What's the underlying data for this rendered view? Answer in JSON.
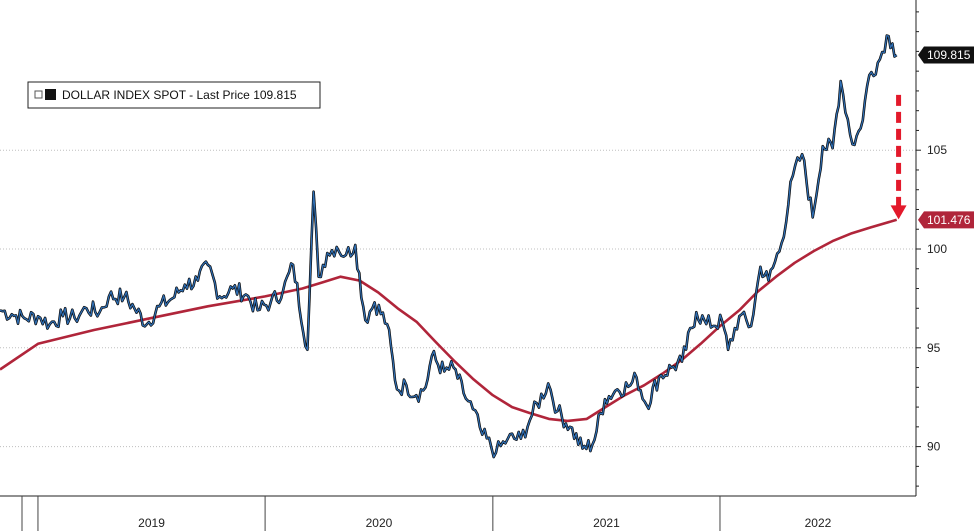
{
  "chart_data": {
    "type": "line",
    "legend": {
      "label": "DOLLAR INDEX SPOT - Last Price",
      "value": "109.815",
      "position": "top-left"
    },
    "y_axis": {
      "side": "right",
      "ylim": [
        87.5,
        112.5
      ],
      "ticks": [
        90,
        95,
        100,
        105
      ]
    },
    "x_axis": {
      "labels": [
        "2019",
        "2020",
        "2021",
        "2022"
      ]
    },
    "grid": {
      "horizontal": true,
      "vertical": false
    },
    "colors": {
      "price": "#2f6fb5",
      "ma": "#b0253a",
      "last_tag": "#111111",
      "ma_tag": "#b0253a",
      "arrow": "#e3192b",
      "grid": "#bfbfbf"
    },
    "series": [
      {
        "name": "DOLLAR INDEX SPOT - Last Price",
        "kind": "price",
        "points": [
          [
            "2018-11-01",
            96.9
          ],
          [
            "2018-11-20",
            96.7
          ],
          [
            "2018-12-10",
            96.5
          ],
          [
            "2019-01-01",
            96.6
          ],
          [
            "2019-01-20",
            96.2
          ],
          [
            "2019-02-10",
            96.6
          ],
          [
            "2019-03-01",
            96.5
          ],
          [
            "2019-03-20",
            97.0
          ],
          [
            "2019-04-10",
            96.8
          ],
          [
            "2019-04-25",
            97.6
          ],
          [
            "2019-05-20",
            97.6
          ],
          [
            "2019-06-05",
            97.0
          ],
          [
            "2019-06-25",
            96.2
          ],
          [
            "2019-07-15",
            97.1
          ],
          [
            "2019-08-05",
            97.5
          ],
          [
            "2019-08-25",
            98.2
          ],
          [
            "2019-09-15",
            98.4
          ],
          [
            "2019-10-01",
            99.2
          ],
          [
            "2019-10-20",
            97.6
          ],
          [
            "2019-11-10",
            98.0
          ],
          [
            "2019-12-01",
            97.7
          ],
          [
            "2019-12-20",
            96.9
          ],
          [
            "2020-01-10",
            97.3
          ],
          [
            "2020-01-30",
            97.9
          ],
          [
            "2020-02-15",
            99.2
          ],
          [
            "2020-03-09",
            94.9
          ],
          [
            "2020-03-19",
            102.9
          ],
          [
            "2020-03-27",
            98.6
          ],
          [
            "2020-04-10",
            99.8
          ],
          [
            "2020-04-25",
            100.1
          ],
          [
            "2020-05-10",
            99.7
          ],
          [
            "2020-05-25",
            100.2
          ],
          [
            "2020-06-10",
            96.4
          ],
          [
            "2020-06-25",
            97.3
          ],
          [
            "2020-07-15",
            96.2
          ],
          [
            "2020-07-31",
            92.9
          ],
          [
            "2020-08-15",
            93.1
          ],
          [
            "2020-08-31",
            92.6
          ],
          [
            "2020-09-15",
            93.0
          ],
          [
            "2020-09-25",
            94.6
          ],
          [
            "2020-10-15",
            93.8
          ],
          [
            "2020-10-30",
            94.0
          ],
          [
            "2020-11-15",
            92.7
          ],
          [
            "2020-11-30",
            91.9
          ],
          [
            "2020-12-15",
            90.6
          ],
          [
            "2021-01-06",
            89.7
          ],
          [
            "2021-01-25",
            90.4
          ],
          [
            "2021-02-15",
            90.4
          ],
          [
            "2021-03-05",
            91.6
          ],
          [
            "2021-03-31",
            93.2
          ],
          [
            "2021-04-15",
            91.8
          ],
          [
            "2021-05-05",
            91.0
          ],
          [
            "2021-05-25",
            89.9
          ],
          [
            "2021-06-10",
            90.1
          ],
          [
            "2021-06-30",
            92.4
          ],
          [
            "2021-07-20",
            92.9
          ],
          [
            "2021-08-10",
            93.1
          ],
          [
            "2021-08-20",
            93.5
          ],
          [
            "2021-09-05",
            92.1
          ],
          [
            "2021-09-25",
            93.5
          ],
          [
            "2021-10-15",
            94.0
          ],
          [
            "2021-11-01",
            94.3
          ],
          [
            "2021-11-24",
            96.8
          ],
          [
            "2021-12-10",
            96.2
          ],
          [
            "2022-01-05",
            96.3
          ],
          [
            "2022-01-14",
            94.9
          ],
          [
            "2022-02-01",
            96.6
          ],
          [
            "2022-02-20",
            96.1
          ],
          [
            "2022-03-07",
            99.1
          ],
          [
            "2022-03-20",
            98.4
          ],
          [
            "2022-04-10",
            100.3
          ],
          [
            "2022-04-28",
            103.7
          ],
          [
            "2022-05-13",
            104.8
          ],
          [
            "2022-05-30",
            101.6
          ],
          [
            "2022-06-15",
            105.2
          ],
          [
            "2022-07-01",
            105.1
          ],
          [
            "2022-07-14",
            108.5
          ],
          [
            "2022-08-02",
            105.3
          ],
          [
            "2022-08-15",
            106.1
          ],
          [
            "2022-08-29",
            108.8
          ],
          [
            "2022-09-15",
            109.6
          ],
          [
            "2022-09-26",
            110.8
          ],
          [
            "2022-10-05",
            110.4
          ],
          [
            "2022-10-12",
            109.815
          ]
        ]
      },
      {
        "name": "",
        "kind": "moving-average",
        "points": [
          [
            "2018-11-01",
            93.9
          ],
          [
            "2019-01-01",
            95.2
          ],
          [
            "2019-04-01",
            95.9
          ],
          [
            "2019-07-01",
            96.5
          ],
          [
            "2019-10-01",
            97.1
          ],
          [
            "2020-01-01",
            97.6
          ],
          [
            "2020-03-01",
            98.0
          ],
          [
            "2020-04-01",
            98.3
          ],
          [
            "2020-05-01",
            98.6
          ],
          [
            "2020-06-01",
            98.4
          ],
          [
            "2020-07-01",
            97.8
          ],
          [
            "2020-08-01",
            97.0
          ],
          [
            "2020-09-01",
            96.3
          ],
          [
            "2020-10-01",
            95.3
          ],
          [
            "2020-11-01",
            94.3
          ],
          [
            "2020-12-01",
            93.4
          ],
          [
            "2021-01-01",
            92.6
          ],
          [
            "2021-02-01",
            92.0
          ],
          [
            "2021-03-01",
            91.7
          ],
          [
            "2021-04-01",
            91.4
          ],
          [
            "2021-05-01",
            91.3
          ],
          [
            "2021-06-01",
            91.4
          ],
          [
            "2021-07-01",
            92.0
          ],
          [
            "2021-08-01",
            92.6
          ],
          [
            "2021-09-01",
            93.1
          ],
          [
            "2021-10-01",
            93.7
          ],
          [
            "2021-11-01",
            94.4
          ],
          [
            "2021-12-01",
            95.2
          ],
          [
            "2022-01-01",
            96.1
          ],
          [
            "2022-02-01",
            96.9
          ],
          [
            "2022-03-01",
            97.8
          ],
          [
            "2022-04-01",
            98.6
          ],
          [
            "2022-05-01",
            99.3
          ],
          [
            "2022-06-01",
            99.9
          ],
          [
            "2022-07-01",
            100.4
          ],
          [
            "2022-08-01",
            100.8
          ],
          [
            "2022-09-01",
            101.1
          ],
          [
            "2022-10-12",
            101.476
          ]
        ]
      }
    ],
    "tags": [
      {
        "label": "109.815",
        "value": 109.815,
        "series": "price"
      },
      {
        "label": "101.476",
        "value": 101.476,
        "series": "ma"
      }
    ],
    "annotations": [
      {
        "kind": "dashed-down-arrow",
        "from": 107.8,
        "to": 101.4,
        "date": "2022-10-15"
      }
    ]
  }
}
